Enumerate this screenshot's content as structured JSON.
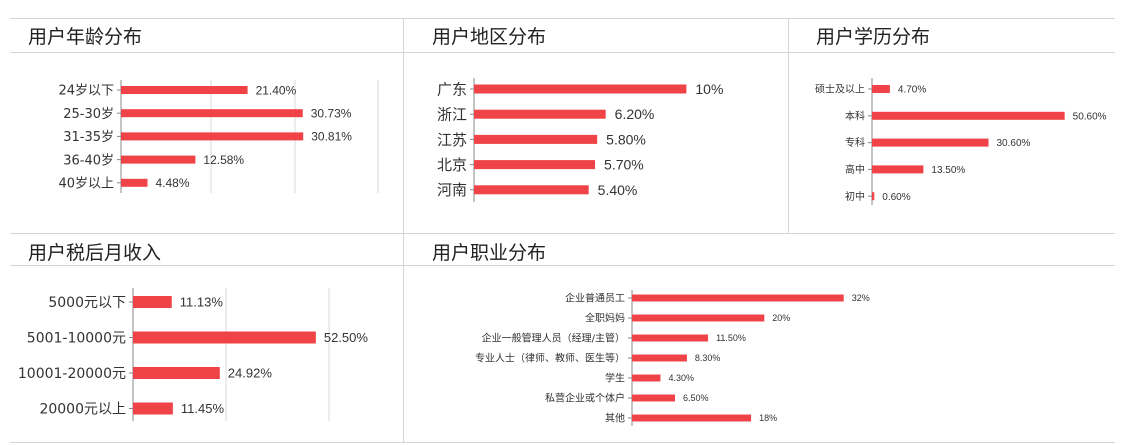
{
  "colors": {
    "bar": "#ef4347",
    "axis": "#888888",
    "grid": "#d9d9d9",
    "divider": "#d4d4d4"
  },
  "chart_data": [
    {
      "id": "age",
      "type": "bar",
      "orientation": "horizontal",
      "title": "用户年龄分布",
      "categories": [
        "24岁以下",
        "25-30岁",
        "31-35岁",
        "36-40岁",
        "40岁以上"
      ],
      "values": [
        21.4,
        30.73,
        30.81,
        12.58,
        4.48
      ],
      "labels": [
        "21.40%",
        "30.73%",
        "30.81%",
        "12.58%",
        "4.48%"
      ],
      "xlim": [
        0,
        35
      ],
      "grid": true
    },
    {
      "id": "region",
      "type": "bar",
      "orientation": "horizontal",
      "title": "用户地区分布",
      "categories": [
        "广东",
        "浙江",
        "江苏",
        "北京",
        "河南"
      ],
      "values": [
        10,
        6.2,
        5.8,
        5.7,
        5.4
      ],
      "labels": [
        "10%",
        "6.20%",
        "5.80%",
        "5.70%",
        "5.40%"
      ],
      "xlim": [
        0,
        10.5
      ],
      "grid": false
    },
    {
      "id": "education",
      "type": "bar",
      "orientation": "horizontal",
      "title": "用户学历分布",
      "categories": [
        "硕士及以上",
        "本科",
        "专科",
        "高中",
        "初中"
      ],
      "values": [
        4.7,
        50.6,
        30.6,
        13.5,
        0.6
      ],
      "labels": [
        "4.70%",
        "50.60%",
        "30.60%",
        "13.50%",
        "0.60%"
      ],
      "xlim": [
        0,
        52
      ],
      "grid": false
    },
    {
      "id": "income",
      "type": "bar",
      "orientation": "horizontal",
      "title": "用户税后月收入",
      "categories": [
        "5000元以下",
        "5001-10000元",
        "10001-20000元",
        "20000元以上"
      ],
      "values": [
        11.13,
        52.5,
        24.92,
        11.45
      ],
      "labels": [
        "11.13%",
        "52.50%",
        "24.92%",
        "11.45%"
      ],
      "xlim": [
        0,
        58
      ],
      "grid": true
    },
    {
      "id": "occupation",
      "type": "bar",
      "orientation": "horizontal",
      "title": "用户职业分布",
      "categories": [
        "企业普通员工",
        "全职妈妈",
        "企业一般管理人员（经理/主管）",
        "专业人士（律师、教师、医生等）",
        "学生",
        "私营企业或个体户",
        "其他"
      ],
      "values": [
        32,
        20,
        11.5,
        8.3,
        4.3,
        6.5,
        18
      ],
      "labels": [
        "32%",
        "20%",
        "11.50%",
        "8.30%",
        "4.30%",
        "6.50%",
        "18%"
      ],
      "xlim": [
        0,
        32.5
      ],
      "grid": false
    }
  ]
}
